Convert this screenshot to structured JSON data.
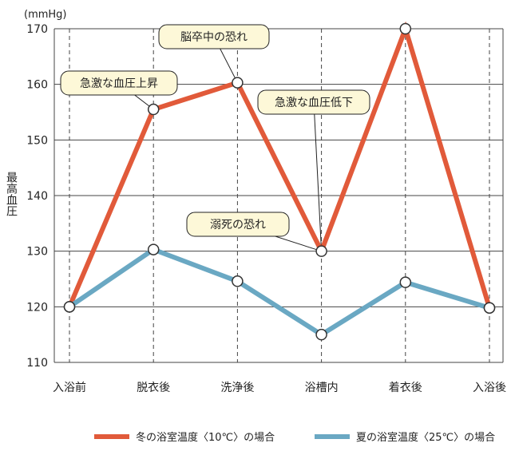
{
  "chart_data": {
    "type": "line",
    "title": "",
    "xlabel": "",
    "ylabel": "最高血圧",
    "unit": "(mmHg)",
    "ylim": [
      110,
      170
    ],
    "yticks": [
      110,
      120,
      130,
      140,
      150,
      160,
      170
    ],
    "categories": [
      "入浴前",
      "脱衣後",
      "洗浄後",
      "浴槽内",
      "着衣後",
      "入浴後"
    ],
    "grid": "horizontal solid, vertical dashed",
    "series": [
      {
        "name": "冬の浴室温度〈10℃〉の場合",
        "values": [
          120,
          155.5,
          160.3,
          130,
          170,
          119.8
        ],
        "color": "#e15a3a"
      },
      {
        "name": "夏の浴室温度〈25℃〉の場合",
        "values": [
          120,
          130.3,
          124.6,
          115,
          124.4,
          119.8
        ],
        "color": "#6aa8c3"
      }
    ],
    "annotations": [
      {
        "text": "急激な血圧上昇",
        "series": 0,
        "category": 1
      },
      {
        "text": "脳卒中の恐れ",
        "series": 0,
        "category": 2
      },
      {
        "text": "急激な血圧低下",
        "series": 0,
        "category": 3
      },
      {
        "text": "溺死の恐れ",
        "series": 0,
        "category": 3
      }
    ],
    "legend_position": "bottom"
  },
  "style": {
    "callout_fill": "#fdf8d8",
    "grid_color": "#444444",
    "marker_fill": "#ffffff"
  }
}
